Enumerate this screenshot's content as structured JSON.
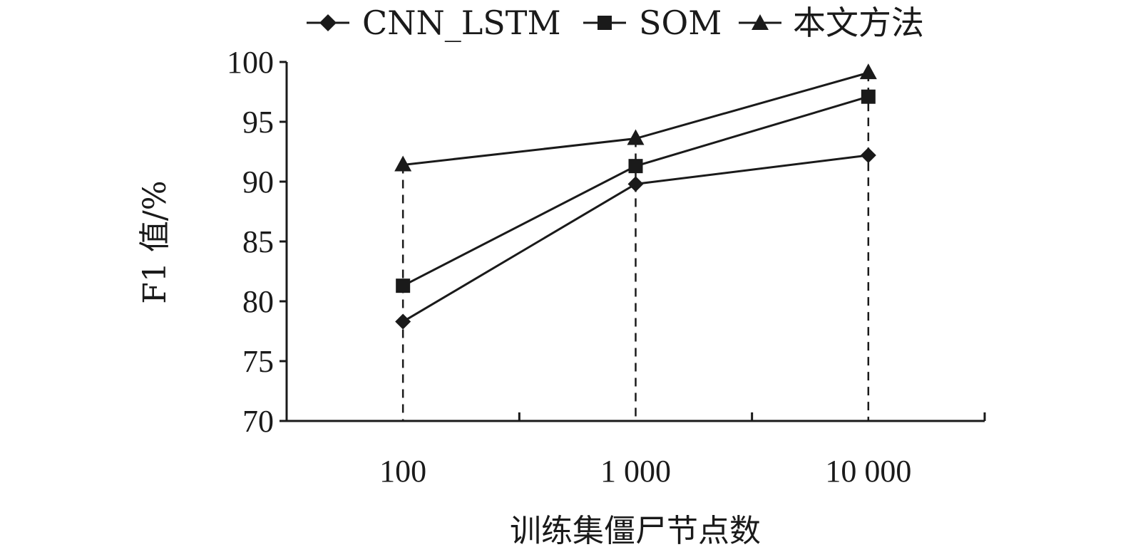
{
  "chart_data": {
    "type": "line",
    "x_categories": [
      "100",
      "1 000",
      "10 000"
    ],
    "xlabel": "训练集僵尸节点数",
    "ylabel": "F1 值/%",
    "ylim": [
      70,
      100
    ],
    "yticks": [
      "70",
      "75",
      "80",
      "85",
      "90",
      "95",
      "100"
    ],
    "grid": false,
    "legend_position": "top",
    "series": [
      {
        "name": "CNN_LSTM",
        "marker": "diamond",
        "values": [
          78.3,
          89.8,
          92.2
        ]
      },
      {
        "name": "SOM",
        "marker": "square",
        "values": [
          81.3,
          91.3,
          97.1
        ]
      },
      {
        "name": "本文方法",
        "marker": "triangle",
        "values": [
          91.4,
          93.6,
          99.1
        ]
      }
    ],
    "colors": {
      "line": "#1a1a1a",
      "marker": "#1a1a1a"
    }
  }
}
